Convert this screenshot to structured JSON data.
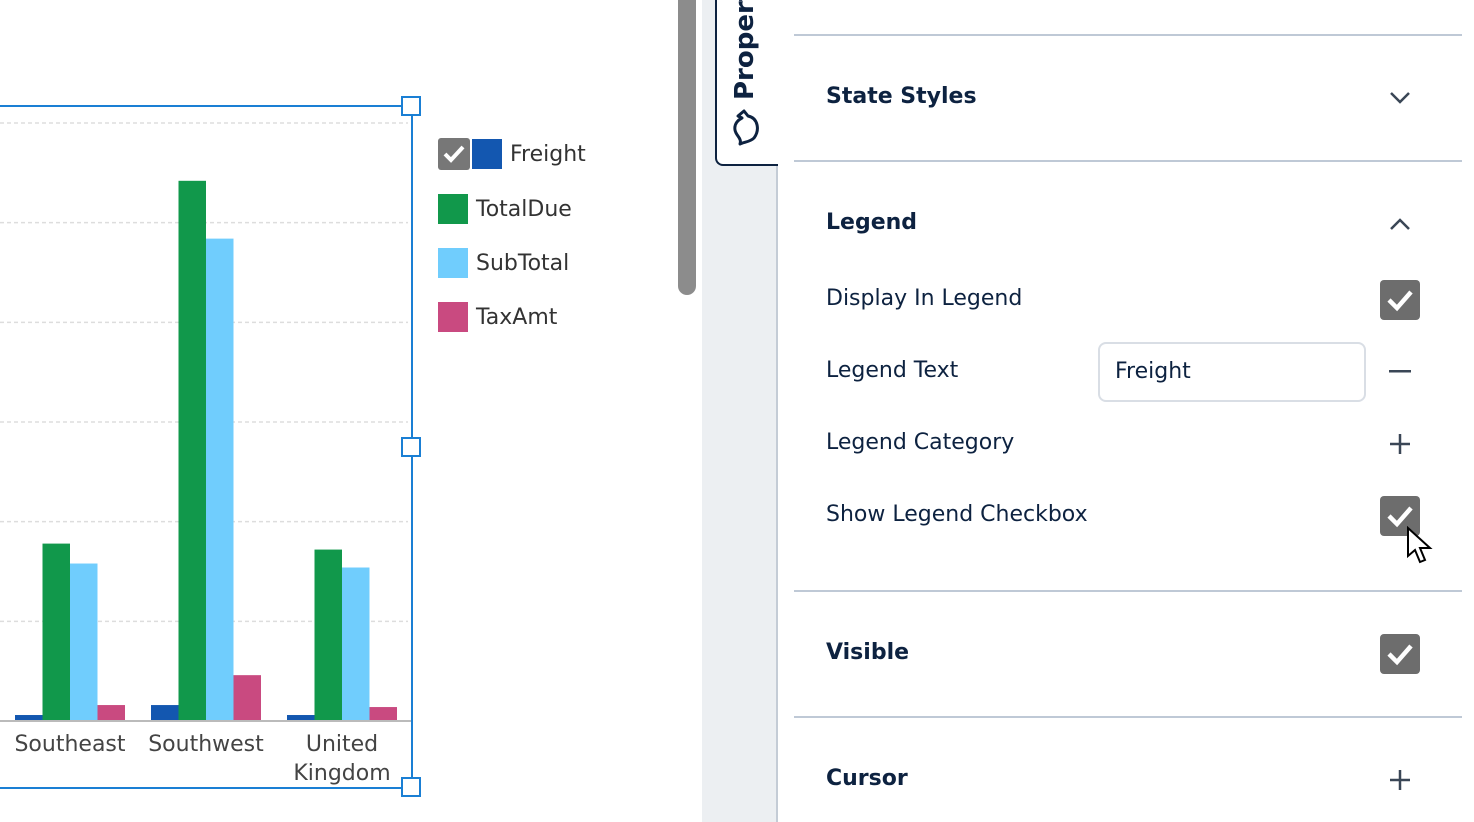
{
  "chart_data": {
    "type": "bar",
    "categories": [
      "Southeast",
      "Southwest",
      "United Kingdom"
    ],
    "category_labels": [
      [
        "Southeast"
      ],
      [
        "Southwest"
      ],
      [
        "United",
        "Kingdom"
      ]
    ],
    "series": [
      {
        "name": "Freight",
        "color": "#1357b0",
        "values": [
          0.06,
          0.16,
          0.06
        ]
      },
      {
        "name": "TotalDue",
        "color": "#11984b",
        "values": [
          1.78,
          5.42,
          1.72
        ]
      },
      {
        "name": "SubTotal",
        "color": "#70cdfd",
        "values": [
          1.58,
          4.84,
          1.54
        ]
      },
      {
        "name": "TaxAmt",
        "color": "#c94a80",
        "values": [
          0.16,
          0.46,
          0.14
        ]
      }
    ],
    "ylim": [
      0,
      6
    ],
    "grid": true,
    "legend_placement": "right",
    "legend_checkbox_on": "Freight"
  },
  "panel": {
    "tab_label": "Properties",
    "tab_icon": "paint-brush-icon",
    "state_styles": "State Styles",
    "legend": "Legend",
    "display_in_legend": "Display In Legend",
    "display_in_legend_checked": true,
    "legend_text_label": "Legend Text",
    "legend_text_value": "Freight",
    "legend_category": "Legend Category",
    "show_legend_checkbox": "Show Legend Checkbox",
    "show_legend_checkbox_checked": true,
    "visible": "Visible",
    "visible_checked": true,
    "cursor": "Cursor"
  }
}
